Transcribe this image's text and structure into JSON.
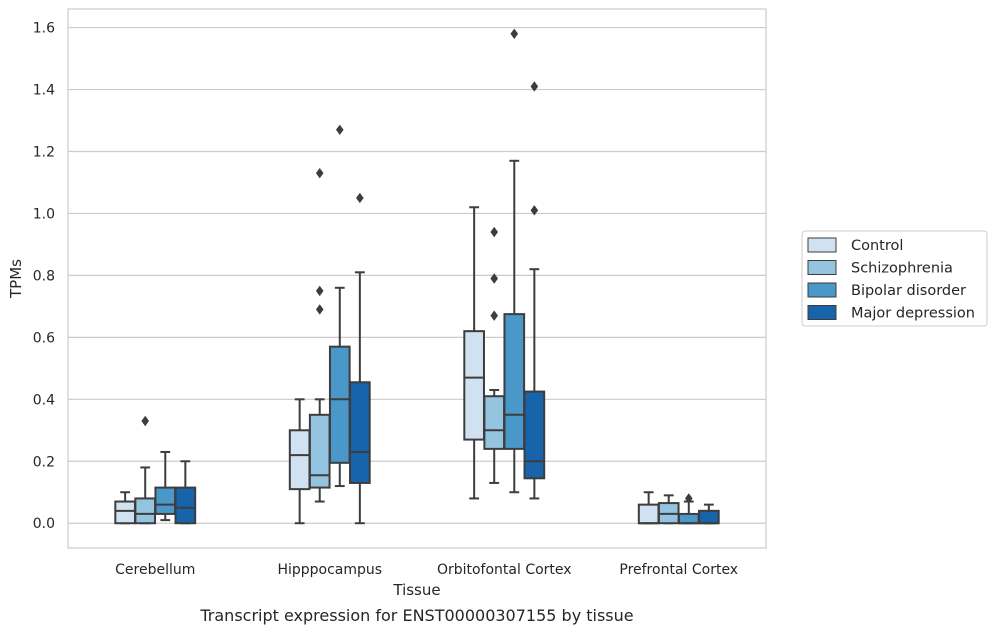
{
  "chart_data": {
    "type": "boxplot",
    "title": "",
    "caption": "Transcript expression for ENST00000307155 by tissue",
    "xlabel": "Tissue",
    "ylabel": "TPMs",
    "ylim": [
      -0.08,
      1.66
    ],
    "yticks": [
      0.0,
      0.2,
      0.4,
      0.6,
      0.8,
      1.0,
      1.2,
      1.4,
      1.6
    ],
    "ytick_labels": [
      "0.0",
      "0.2",
      "0.4",
      "0.6",
      "0.8",
      "1.0",
      "1.2",
      "1.4",
      "1.6"
    ],
    "grid": "y",
    "legend_position": "right",
    "categories": [
      "Cerebellum",
      "Hipppocampus",
      "Orbitofontal Cortex",
      "Prefrontal Cortex"
    ],
    "series": [
      {
        "name": "Control",
        "color": "#d0e1f2",
        "boxes": [
          {
            "whislo": 0.0,
            "q1": 0.0,
            "med": 0.04,
            "q3": 0.07,
            "whishi": 0.1,
            "fliers": []
          },
          {
            "whislo": 0.0,
            "q1": 0.11,
            "med": 0.22,
            "q3": 0.3,
            "whishi": 0.4,
            "fliers": []
          },
          {
            "whislo": 0.08,
            "q1": 0.27,
            "med": 0.47,
            "q3": 0.62,
            "whishi": 1.02,
            "fliers": []
          },
          {
            "whislo": 0.0,
            "q1": 0.0,
            "med": 0.0,
            "q3": 0.06,
            "whishi": 0.1,
            "fliers": []
          }
        ]
      },
      {
        "name": "Schizophrenia",
        "color": "#94c4df",
        "boxes": [
          {
            "whislo": 0.0,
            "q1": 0.0,
            "med": 0.03,
            "q3": 0.08,
            "whishi": 0.18,
            "fliers": [
              0.33
            ]
          },
          {
            "whislo": 0.07,
            "q1": 0.115,
            "med": 0.155,
            "q3": 0.35,
            "whishi": 0.4,
            "fliers": [
              0.69,
              0.75,
              1.13
            ]
          },
          {
            "whislo": 0.13,
            "q1": 0.24,
            "med": 0.3,
            "q3": 0.41,
            "whishi": 0.43,
            "fliers": [
              0.67,
              0.79,
              0.94
            ]
          },
          {
            "whislo": 0.0,
            "q1": 0.0,
            "med": 0.03,
            "q3": 0.065,
            "whishi": 0.09,
            "fliers": []
          }
        ]
      },
      {
        "name": "Bipolar disorder",
        "color": "#4a98c9",
        "boxes": [
          {
            "whislo": 0.01,
            "q1": 0.03,
            "med": 0.06,
            "q3": 0.115,
            "whishi": 0.23,
            "fliers": []
          },
          {
            "whislo": 0.12,
            "q1": 0.195,
            "med": 0.4,
            "q3": 0.57,
            "whishi": 0.76,
            "fliers": [
              1.27
            ]
          },
          {
            "whislo": 0.1,
            "q1": 0.24,
            "med": 0.35,
            "q3": 0.675,
            "whishi": 1.17,
            "fliers": [
              1.58
            ]
          },
          {
            "whislo": 0.0,
            "q1": 0.0,
            "med": 0.0,
            "q3": 0.03,
            "whishi": 0.07,
            "fliers": [
              0.08
            ]
          }
        ]
      },
      {
        "name": "Major depression",
        "color": "#1764ab",
        "boxes": [
          {
            "whislo": 0.0,
            "q1": 0.0,
            "med": 0.05,
            "q3": 0.115,
            "whishi": 0.2,
            "fliers": []
          },
          {
            "whislo": 0.0,
            "q1": 0.13,
            "med": 0.23,
            "q3": 0.455,
            "whishi": 0.81,
            "fliers": [
              1.05
            ]
          },
          {
            "whislo": 0.08,
            "q1": 0.145,
            "med": 0.2,
            "q3": 0.425,
            "whishi": 0.82,
            "fliers": [
              1.01,
              1.41
            ]
          },
          {
            "whislo": 0.0,
            "q1": 0.0,
            "med": 0.0,
            "q3": 0.04,
            "whishi": 0.06,
            "fliers": []
          }
        ]
      }
    ]
  }
}
